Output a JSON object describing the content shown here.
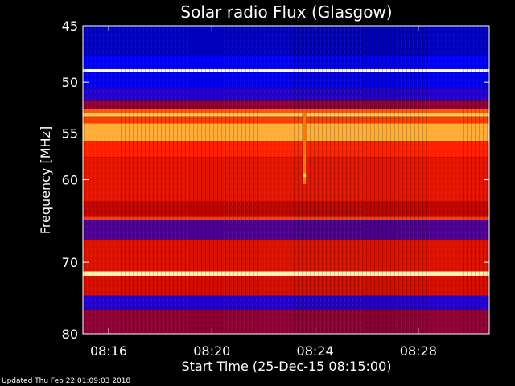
{
  "chart_data": {
    "type": "heatmap",
    "title": "Solar radio Flux (Glasgow)",
    "xlabel": "Start Time (25-Dec-15 08:15:00)",
    "ylabel": "Frequency [MHz]",
    "xlim": [
      "08:15:00",
      "08:30:45"
    ],
    "ylim": [
      45,
      80
    ],
    "x_ticks": [
      "08:16",
      "08:20",
      "08:24",
      "08:28"
    ],
    "y_ticks": [
      45,
      50,
      55,
      60,
      70,
      80
    ],
    "y_scale": "log",
    "grid": false,
    "colormap": [
      "#000080",
      "#0000ff",
      "#b00000",
      "#ff2000",
      "#ff8000",
      "#ffd060",
      "#ffffd0"
    ],
    "frequency_bands": [
      {
        "from_mhz": 45.0,
        "to_mhz": 47.6,
        "intensity": 0.08
      },
      {
        "from_mhz": 47.6,
        "to_mhz": 48.8,
        "intensity": 0.15
      },
      {
        "from_mhz": 48.8,
        "to_mhz": 49.1,
        "intensity": 0.98
      },
      {
        "from_mhz": 49.1,
        "to_mhz": 50.6,
        "intensity": 0.14
      },
      {
        "from_mhz": 50.6,
        "to_mhz": 51.7,
        "intensity": 0.2
      },
      {
        "from_mhz": 51.7,
        "to_mhz": 52.6,
        "intensity": 0.3
      },
      {
        "from_mhz": 52.6,
        "to_mhz": 53.0,
        "intensity": 0.6
      },
      {
        "from_mhz": 53.0,
        "to_mhz": 53.3,
        "intensity": 0.82
      },
      {
        "from_mhz": 53.3,
        "to_mhz": 54.0,
        "intensity": 0.55
      },
      {
        "from_mhz": 54.0,
        "to_mhz": 55.8,
        "intensity": 0.76
      },
      {
        "from_mhz": 55.8,
        "to_mhz": 57.5,
        "intensity": 0.5
      },
      {
        "from_mhz": 57.5,
        "to_mhz": 62.5,
        "intensity": 0.44
      },
      {
        "from_mhz": 62.5,
        "to_mhz": 64.3,
        "intensity": 0.36
      },
      {
        "from_mhz": 64.3,
        "to_mhz": 64.7,
        "intensity": 0.55
      },
      {
        "from_mhz": 64.7,
        "to_mhz": 67.2,
        "intensity": 0.24
      },
      {
        "from_mhz": 67.2,
        "to_mhz": 71.2,
        "intensity": 0.42
      },
      {
        "from_mhz": 71.2,
        "to_mhz": 71.8,
        "intensity": 0.95
      },
      {
        "from_mhz": 71.8,
        "to_mhz": 74.5,
        "intensity": 0.4
      },
      {
        "from_mhz": 74.5,
        "to_mhz": 76.5,
        "intensity": 0.2
      },
      {
        "from_mhz": 76.5,
        "to_mhz": 80.0,
        "intensity": 0.3
      }
    ],
    "bursts": [
      {
        "time": "08:23:35",
        "from_mhz": 53.0,
        "to_mhz": 60.5,
        "intensity": 0.65
      },
      {
        "time": "08:23:35",
        "from_mhz": 59.3,
        "to_mhz": 59.7,
        "intensity": 0.85
      }
    ]
  },
  "footer": "Updated Thu Feb 22 01:09:03 2018"
}
